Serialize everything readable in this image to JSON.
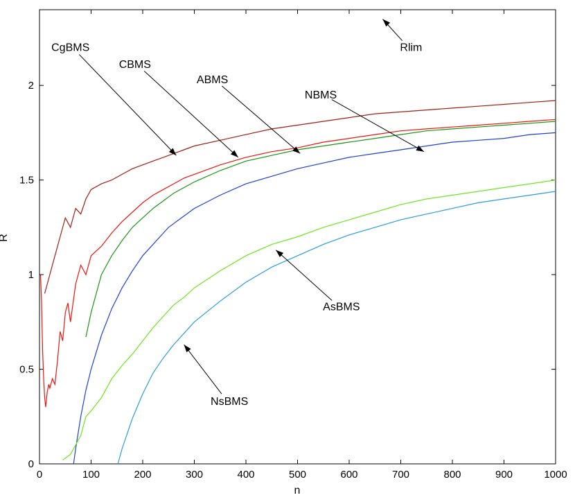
{
  "chart_data": {
    "type": "line",
    "title": "",
    "xlabel": "n",
    "ylabel": "R",
    "xlim": [
      0,
      1000
    ],
    "ylim": [
      0,
      2.4
    ],
    "xticks": [
      0,
      100,
      200,
      300,
      400,
      500,
      600,
      700,
      800,
      900,
      1000
    ],
    "yticks": [
      0,
      0.5,
      1,
      1.5,
      2
    ],
    "ytick_labels": [
      "0",
      "0.5",
      "1",
      "1.5",
      "2"
    ],
    "grid": false,
    "series": [
      {
        "name": "CgBMS",
        "color": "#a01e12",
        "x": [
          10,
          20,
          30,
          40,
          50,
          60,
          70,
          80,
          90,
          100,
          120,
          140,
          160,
          180,
          200,
          220,
          240,
          260,
          280,
          300,
          350,
          400,
          450,
          500,
          550,
          600,
          650,
          700,
          750,
          800,
          850,
          900,
          950,
          1000
        ],
        "y": [
          0.9,
          1.0,
          1.1,
          1.2,
          1.3,
          1.25,
          1.35,
          1.32,
          1.4,
          1.45,
          1.48,
          1.5,
          1.53,
          1.56,
          1.58,
          1.6,
          1.62,
          1.64,
          1.66,
          1.68,
          1.71,
          1.74,
          1.77,
          1.79,
          1.81,
          1.83,
          1.85,
          1.86,
          1.87,
          1.88,
          1.89,
          1.9,
          1.91,
          1.92
        ]
      },
      {
        "name": "CBMS",
        "color": "#e8150d",
        "x": [
          2,
          4,
          6,
          8,
          10,
          12,
          15,
          18,
          20,
          25,
          30,
          35,
          40,
          45,
          50,
          55,
          60,
          70,
          80,
          90,
          100,
          120,
          140,
          160,
          180,
          200,
          220,
          240,
          260,
          280,
          300,
          350,
          400,
          450,
          500,
          550,
          600,
          650,
          700,
          750,
          800,
          850,
          900,
          950,
          1000
        ],
        "y": [
          1.0,
          0.85,
          0.6,
          0.45,
          0.35,
          0.3,
          0.38,
          0.42,
          0.4,
          0.45,
          0.42,
          0.55,
          0.7,
          0.65,
          0.8,
          0.85,
          0.75,
          0.95,
          1.05,
          1.0,
          1.1,
          1.15,
          1.22,
          1.28,
          1.33,
          1.38,
          1.42,
          1.45,
          1.48,
          1.51,
          1.53,
          1.58,
          1.62,
          1.65,
          1.67,
          1.7,
          1.72,
          1.74,
          1.76,
          1.77,
          1.78,
          1.79,
          1.8,
          1.81,
          1.82
        ]
      },
      {
        "name": "ABMS",
        "color": "#1a9412",
        "x": [
          90,
          100,
          110,
          120,
          140,
          160,
          180,
          200,
          220,
          240,
          260,
          280,
          300,
          350,
          400,
          450,
          500,
          550,
          600,
          650,
          700,
          750,
          800,
          850,
          900,
          950,
          1000
        ],
        "y": [
          0.67,
          0.8,
          0.9,
          1.0,
          1.1,
          1.18,
          1.25,
          1.3,
          1.35,
          1.39,
          1.43,
          1.46,
          1.49,
          1.55,
          1.6,
          1.63,
          1.66,
          1.68,
          1.7,
          1.72,
          1.74,
          1.76,
          1.77,
          1.78,
          1.79,
          1.8,
          1.81
        ]
      },
      {
        "name": "NBMS",
        "color": "#1c3fd6",
        "x": [
          66,
          70,
          80,
          90,
          100,
          120,
          140,
          160,
          180,
          200,
          250,
          300,
          350,
          400,
          450,
          500,
          550,
          600,
          650,
          700,
          750,
          800,
          850,
          900,
          950,
          1000
        ],
        "y": [
          0.0,
          0.08,
          0.25,
          0.39,
          0.5,
          0.68,
          0.82,
          0.93,
          1.02,
          1.1,
          1.25,
          1.35,
          1.42,
          1.48,
          1.52,
          1.56,
          1.59,
          1.62,
          1.64,
          1.66,
          1.68,
          1.7,
          1.71,
          1.72,
          1.74,
          1.75
        ]
      },
      {
        "name": "AsBMS",
        "color": "#6ee61e",
        "x": [
          45,
          50,
          60,
          70,
          80,
          90,
          100,
          120,
          140,
          160,
          180,
          200,
          220,
          240,
          260,
          280,
          300,
          350,
          400,
          450,
          500,
          550,
          600,
          650,
          700,
          750,
          800,
          850,
          900,
          950,
          1000
        ],
        "y": [
          0.02,
          0.03,
          0.05,
          0.1,
          0.15,
          0.25,
          0.28,
          0.35,
          0.45,
          0.52,
          0.58,
          0.65,
          0.72,
          0.78,
          0.84,
          0.88,
          0.93,
          1.02,
          1.1,
          1.16,
          1.2,
          1.25,
          1.29,
          1.33,
          1.37,
          1.4,
          1.42,
          1.44,
          1.46,
          1.48,
          1.5
        ]
      },
      {
        "name": "NsBMS",
        "color": "#2a9be0",
        "x": [
          152,
          160,
          180,
          200,
          220,
          240,
          260,
          280,
          300,
          350,
          400,
          450,
          500,
          550,
          600,
          650,
          700,
          750,
          800,
          850,
          900,
          950,
          1000
        ],
        "y": [
          0.0,
          0.08,
          0.24,
          0.37,
          0.48,
          0.56,
          0.63,
          0.69,
          0.75,
          0.86,
          0.96,
          1.04,
          1.1,
          1.16,
          1.21,
          1.25,
          1.29,
          1.32,
          1.35,
          1.38,
          1.4,
          1.42,
          1.44
        ]
      }
    ],
    "annotations": [
      {
        "text": "Rlim",
        "text_at": [
          720,
          2.2
        ],
        "point_at": [
          665,
          2.35
        ]
      },
      {
        "text": "CgBMS",
        "text_at": [
          60,
          2.2
        ],
        "point_at": [
          265,
          1.63
        ]
      },
      {
        "text": "CBMS",
        "text_at": [
          185,
          2.11
        ],
        "point_at": [
          385,
          1.62
        ]
      },
      {
        "text": "ABMS",
        "text_at": [
          335,
          2.03
        ],
        "point_at": [
          505,
          1.64
        ]
      },
      {
        "text": "NBMS",
        "text_at": [
          545,
          1.95
        ],
        "point_at": [
          745,
          1.65
        ]
      },
      {
        "text": "AsBMS",
        "text_at": [
          585,
          0.83
        ],
        "point_at": [
          458,
          1.13
        ]
      },
      {
        "text": "NsBMS",
        "text_at": [
          368,
          0.33
        ],
        "point_at": [
          280,
          0.63
        ]
      }
    ]
  }
}
